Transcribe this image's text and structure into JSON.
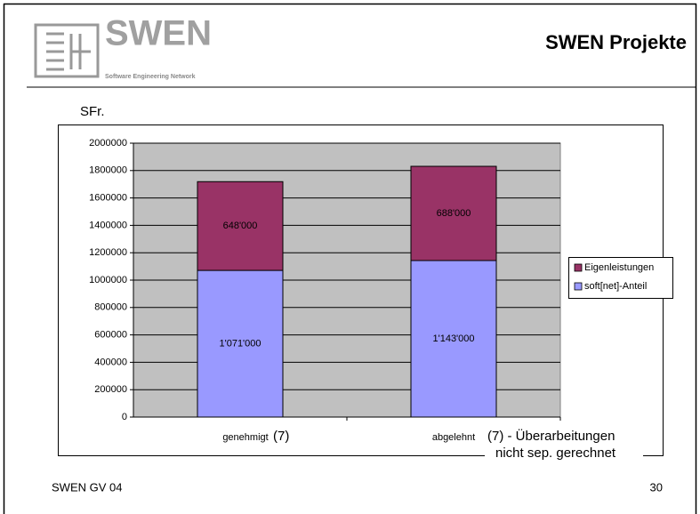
{
  "header": {
    "logo_text": "SWEN",
    "logo_tagline": "Software Engineering Network",
    "title": "SWEN Projekte"
  },
  "chart_data": {
    "type": "bar",
    "stacked": true,
    "y_label": "SFr.",
    "categories": [
      "genehmigt",
      "abgelehnt"
    ],
    "series": [
      {
        "name": "soft[net]-Anteil",
        "color": "#9999ff",
        "values": [
          1071000,
          1143000
        ],
        "value_labels": [
          "1'071'000",
          "1'143'000"
        ]
      },
      {
        "name": "Eigenleistungen",
        "color": "#993366",
        "values": [
          648000,
          688000
        ],
        "value_labels": [
          "648'000",
          "688'000"
        ]
      }
    ],
    "ylim": [
      0,
      2000000
    ],
    "yticks": [
      0,
      200000,
      400000,
      600000,
      800000,
      1000000,
      1200000,
      1400000,
      1600000,
      1800000,
      2000000
    ],
    "grid": true,
    "legend": "right",
    "annotations": [
      "(7)",
      "(7) - Überarbeitungen",
      "nicht sep. gerechnet"
    ]
  },
  "footer": {
    "left": "SWEN GV 04",
    "page": "30"
  }
}
